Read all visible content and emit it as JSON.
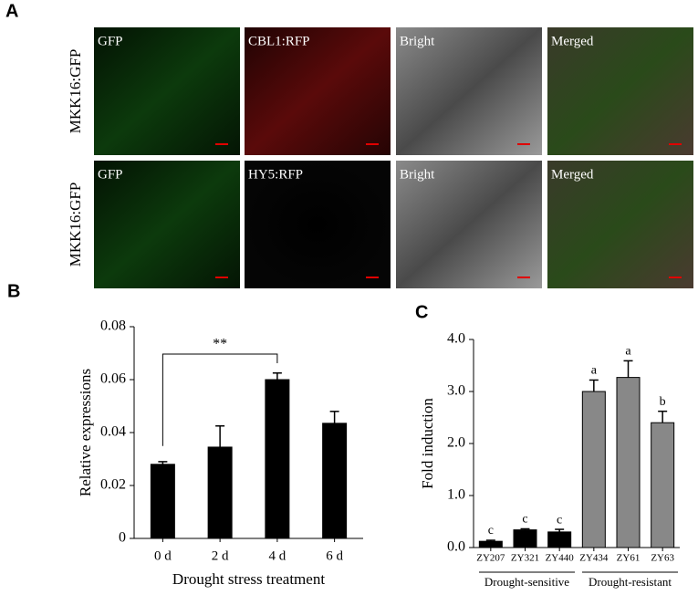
{
  "panel_a": {
    "label": "A",
    "rows": [
      {
        "row_label": "MKK16:GFP",
        "images": [
          "GFP",
          "CBL1:RFP",
          "Bright",
          "Merged"
        ]
      },
      {
        "row_label": "MKK16:GFP",
        "images": [
          "GFP",
          "HY5:RFP",
          "Bright",
          "Merged"
        ]
      }
    ]
  },
  "chart_data": [
    {
      "type": "bar",
      "panel_label": "B",
      "ylabel": "Relative expressions",
      "xlabel": "Drought stress treatment",
      "categories": [
        "0 d",
        "2 d",
        "4 d",
        "6 d"
      ],
      "values": [
        0.028,
        0.0345,
        0.06,
        0.0435
      ],
      "errors": [
        0.001,
        0.008,
        0.0025,
        0.0045
      ],
      "color": "#000000",
      "ylim": [
        0,
        0.08
      ],
      "yticks": [
        0,
        0.02,
        0.04,
        0.06,
        0.08
      ],
      "significance": {
        "from": "0 d",
        "to": "4 d",
        "label": "**"
      }
    },
    {
      "type": "bar",
      "panel_label": "C",
      "ylabel": "Fold induction",
      "categories": [
        "ZY207",
        "ZY321",
        "ZY440",
        "ZY434",
        "ZY61",
        "ZY63"
      ],
      "values": [
        0.12,
        0.34,
        0.3,
        3.0,
        3.27,
        2.4
      ],
      "errors": [
        0.02,
        0.02,
        0.05,
        0.22,
        0.32,
        0.22
      ],
      "letters": [
        "c",
        "c",
        "c",
        "a",
        "a",
        "b"
      ],
      "colors": [
        "#000000",
        "#000000",
        "#000000",
        "#888888",
        "#888888",
        "#888888"
      ],
      "ylim": [
        0,
        4
      ],
      "yticks": [
        {
          "value": 0,
          "label": "0.0"
        },
        {
          "value": 1,
          "label": "1.0"
        },
        {
          "value": 2,
          "label": "2.0"
        },
        {
          "value": 3,
          "label": "3.0"
        },
        {
          "value": 4,
          "label": "4.0"
        }
      ],
      "groups": [
        {
          "label": "Drought-sensitive",
          "members": [
            "ZY207",
            "ZY321",
            "ZY440"
          ]
        },
        {
          "label": "Drought-resistant",
          "members": [
            "ZY434",
            "ZY61",
            "ZY63"
          ]
        }
      ]
    }
  ]
}
